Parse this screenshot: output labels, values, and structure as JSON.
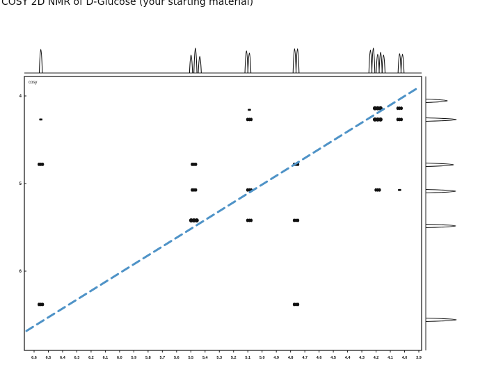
{
  "page": {
    "title": "COSY 2D NMR of D-Glucose (your starting material)"
  },
  "chart_data": {
    "type": "heatmap",
    "subtype": "2D COSY NMR contour plot",
    "title": "COSY 2D NMR of D-Glucose (your starting material)",
    "plot_label": "cosy",
    "x_axis": {
      "range_ppm": [
        6.6,
        3.9
      ],
      "direction": "decreasing",
      "tick_labels": [
        "6.6",
        "6.5",
        "6.4",
        "6.3",
        "6.2",
        "6.1",
        "6.0",
        "5.9",
        "5.8",
        "5.7",
        "5.6",
        "5.5",
        "5.4",
        "5.3",
        "5.2",
        "5.1",
        "5.0",
        "4.9",
        "4.8",
        "4.7",
        "4.6",
        "4.5",
        "4.4",
        "4.3",
        "4.2",
        "4.1",
        "4.0",
        "3.9"
      ]
    },
    "y_axis": {
      "tick_labels": [
        "4",
        "5",
        "6"
      ],
      "tick_values": [
        4,
        5,
        6
      ],
      "range_ppm": [
        3.9,
        6.6
      ]
    },
    "projection_peaks_x_ppm": [
      6.53,
      5.5,
      5.47,
      5.44,
      5.12,
      5.1,
      4.79,
      4.77,
      4.27,
      4.25,
      4.22,
      4.2,
      4.18,
      4.07,
      4.05
    ],
    "projection_peaks_y_ppm": [
      4.08,
      4.22,
      4.77,
      5.1,
      5.48,
      6.53
    ],
    "cross_peaks": [
      {
        "x": 6.53,
        "y": 4.22,
        "size": "small"
      },
      {
        "x": 6.53,
        "y": 4.78,
        "size": "medium"
      },
      {
        "x": 6.53,
        "y": 6.53,
        "size": "medium"
      },
      {
        "x": 5.48,
        "y": 4.78,
        "size": "medium"
      },
      {
        "x": 5.48,
        "y": 5.1,
        "size": "medium"
      },
      {
        "x": 5.48,
        "y": 5.48,
        "size": "large"
      },
      {
        "x": 5.1,
        "y": 4.1,
        "size": "small"
      },
      {
        "x": 5.1,
        "y": 4.22,
        "size": "medium"
      },
      {
        "x": 5.1,
        "y": 5.1,
        "size": "medium"
      },
      {
        "x": 5.1,
        "y": 5.48,
        "size": "medium"
      },
      {
        "x": 4.78,
        "y": 4.78,
        "size": "medium"
      },
      {
        "x": 4.78,
        "y": 5.48,
        "size": "medium"
      },
      {
        "x": 4.78,
        "y": 6.53,
        "size": "medium"
      },
      {
        "x": 4.22,
        "y": 4.08,
        "size": "large"
      },
      {
        "x": 4.22,
        "y": 4.22,
        "size": "large"
      },
      {
        "x": 4.22,
        "y": 5.1,
        "size": "medium"
      },
      {
        "x": 4.07,
        "y": 4.08,
        "size": "medium"
      },
      {
        "x": 4.07,
        "y": 4.22,
        "size": "medium"
      },
      {
        "x": 4.07,
        "y": 5.1,
        "size": "small"
      }
    ],
    "diagonal_line": {
      "style": "dashed",
      "color": "#4f93c7"
    },
    "grid": false
  }
}
